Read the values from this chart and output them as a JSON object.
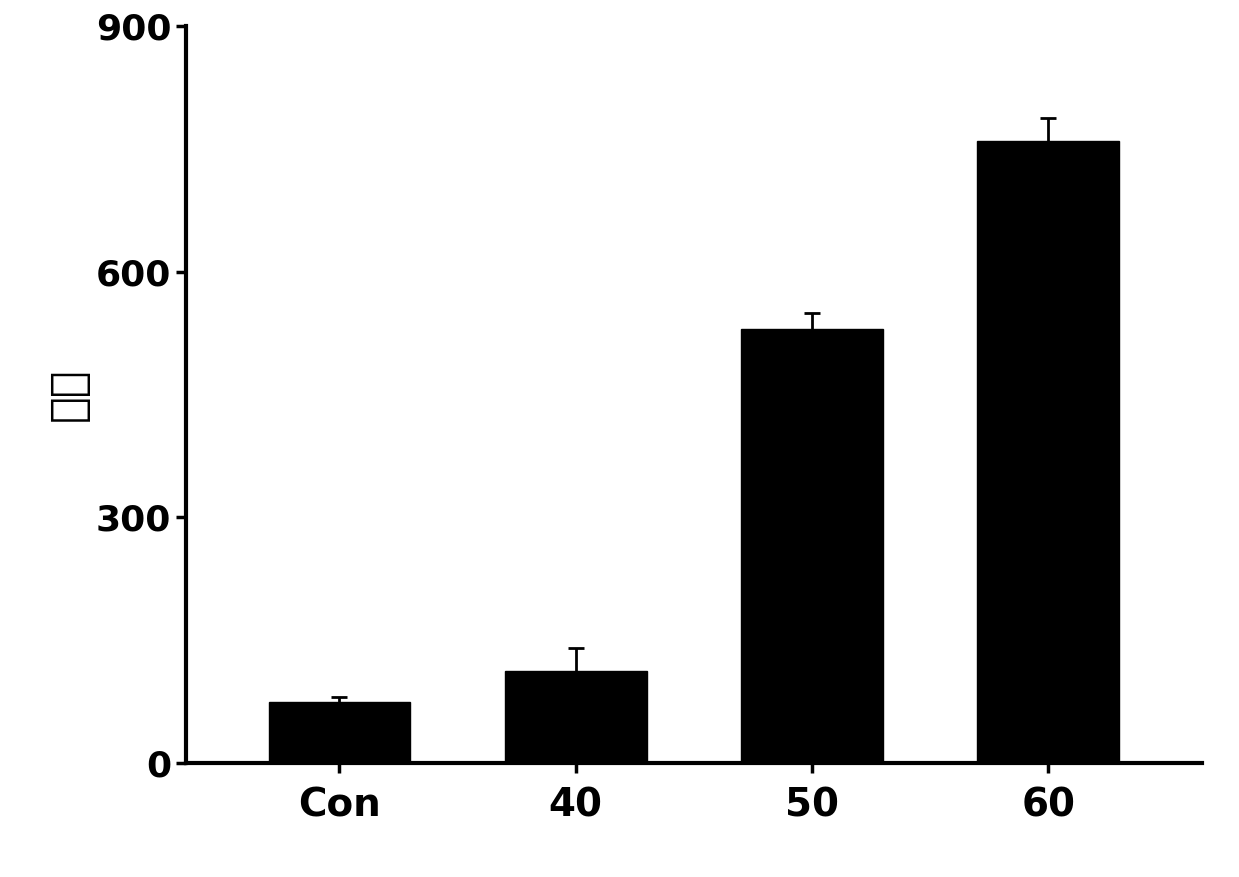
{
  "categories": [
    "Con",
    "40",
    "50",
    "60"
  ],
  "values": [
    75,
    112,
    530,
    760
  ],
  "errors": [
    6,
    28,
    20,
    28
  ],
  "bar_color": "#000000",
  "ylabel": "硬度",
  "ylim": [
    0,
    900
  ],
  "yticks": [
    0,
    300,
    600,
    900
  ],
  "bar_width": 0.6,
  "background_color": "#ffffff",
  "ylabel_fontsize": 32,
  "tick_fontsize": 26,
  "xtick_fontsize": 28,
  "error_capsize": 6,
  "error_linewidth": 2.0,
  "error_color": "#000000",
  "spine_linewidth": 3.0
}
